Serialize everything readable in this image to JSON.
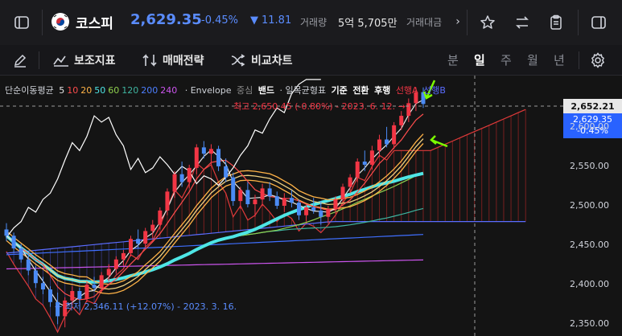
{
  "header": {
    "index_name": "코스피",
    "price": "2,629.35",
    "change_pct": "-0.45%",
    "change_abs": "11.81",
    "volume_label": "거래량",
    "volume_value": "5억 5,705만",
    "amount_label": "거래대금"
  },
  "toolbar": {
    "indicators_label": "보조지표",
    "strategy_label": "매매전략",
    "compare_label": "비교차트",
    "periods": [
      "분",
      "일",
      "주",
      "월",
      "년"
    ],
    "selected_period": "일"
  },
  "legend": {
    "ma_label": "단순이동평균",
    "ma_periods": [
      "5",
      "10",
      "20",
      "50",
      "60",
      "120",
      "200",
      "240"
    ],
    "ma_colors": [
      "#e6e6e6",
      "#ff4d4d",
      "#ffb347",
      "#4ee6e6",
      "#8fd14f",
      "#3fb5a0",
      "#4d7fff",
      "#cc55ee"
    ],
    "envelope_label": "· Envelope",
    "center_label": "중심",
    "band_label": "밴드",
    "ichimoku_label": "· 일목균형표",
    "base_label": "기준",
    "conversion_label": "전환",
    "lagging_label": "후행",
    "span_a_label": "선행A",
    "span_b_label": "선행B"
  },
  "annotations": {
    "high": "최고 2,650.45 (-0.80%) - 2023. 6. 12.",
    "low": "최저 2,346.11 (+12.07%) - 2023. 3. 16."
  },
  "price_axis": {
    "ticks": [
      "2,600.00",
      "2,550.00",
      "2,500.00",
      "2,450.00",
      "2,400.00",
      "2,350.00"
    ],
    "crosshair_value": "2,652.21",
    "current_price": "2,629.35",
    "current_change": "-0.45%"
  },
  "colors": {
    "up": "#f23645",
    "down": "#4b8bf5",
    "accent": "#2962ff",
    "arrow": "#7cfc00"
  },
  "chart_data": {
    "type": "candlestick",
    "title": "",
    "ylim": [
      2335,
      2665
    ],
    "ohlc": [
      [
        2470,
        2478,
        2455,
        2462
      ],
      [
        2462,
        2466,
        2440,
        2446
      ],
      [
        2446,
        2452,
        2428,
        2432
      ],
      [
        2432,
        2440,
        2412,
        2418
      ],
      [
        2418,
        2424,
        2396,
        2402
      ],
      [
        2402,
        2410,
        2388,
        2394
      ],
      [
        2394,
        2398,
        2372,
        2378
      ],
      [
        2378,
        2390,
        2350,
        2360
      ],
      [
        2360,
        2384,
        2346,
        2380
      ],
      [
        2380,
        2398,
        2374,
        2392
      ],
      [
        2392,
        2396,
        2376,
        2382
      ],
      [
        2382,
        2404,
        2378,
        2400
      ],
      [
        2400,
        2410,
        2392,
        2396
      ],
      [
        2396,
        2416,
        2390,
        2412
      ],
      [
        2412,
        2426,
        2404,
        2420
      ],
      [
        2420,
        2436,
        2414,
        2432
      ],
      [
        2432,
        2444,
        2424,
        2440
      ],
      [
        2440,
        2462,
        2436,
        2458
      ],
      [
        2458,
        2470,
        2446,
        2452
      ],
      [
        2452,
        2472,
        2448,
        2468
      ],
      [
        2468,
        2482,
        2458,
        2476
      ],
      [
        2476,
        2498,
        2470,
        2494
      ],
      [
        2494,
        2522,
        2488,
        2518
      ],
      [
        2518,
        2544,
        2510,
        2540
      ],
      [
        2540,
        2556,
        2524,
        2530
      ],
      [
        2530,
        2552,
        2522,
        2548
      ],
      [
        2548,
        2578,
        2540,
        2574
      ],
      [
        2574,
        2582,
        2560,
        2566
      ],
      [
        2566,
        2578,
        2552,
        2572
      ],
      [
        2572,
        2576,
        2544,
        2550
      ],
      [
        2550,
        2560,
        2530,
        2536
      ],
      [
        2536,
        2542,
        2500,
        2506
      ],
      [
        2506,
        2524,
        2496,
        2520
      ],
      [
        2520,
        2530,
        2498,
        2502
      ],
      [
        2502,
        2514,
        2486,
        2508
      ],
      [
        2508,
        2528,
        2500,
        2522
      ],
      [
        2522,
        2530,
        2506,
        2512
      ],
      [
        2512,
        2518,
        2496,
        2500
      ],
      [
        2500,
        2516,
        2492,
        2510
      ],
      [
        2510,
        2520,
        2498,
        2504
      ],
      [
        2504,
        2508,
        2482,
        2488
      ],
      [
        2488,
        2502,
        2480,
        2498
      ],
      [
        2498,
        2510,
        2490,
        2494
      ],
      [
        2494,
        2506,
        2476,
        2486
      ],
      [
        2486,
        2500,
        2478,
        2496
      ],
      [
        2496,
        2512,
        2490,
        2508
      ],
      [
        2508,
        2528,
        2504,
        2524
      ],
      [
        2524,
        2540,
        2516,
        2536
      ],
      [
        2536,
        2560,
        2530,
        2556
      ],
      [
        2556,
        2570,
        2544,
        2552
      ],
      [
        2552,
        2576,
        2546,
        2570
      ],
      [
        2570,
        2590,
        2562,
        2584
      ],
      [
        2584,
        2600,
        2574,
        2578
      ],
      [
        2578,
        2606,
        2572,
        2602
      ],
      [
        2602,
        2620,
        2596,
        2614
      ],
      [
        2614,
        2636,
        2606,
        2630
      ],
      [
        2630,
        2650,
        2620,
        2644
      ],
      [
        2644,
        2650,
        2624,
        2629
      ]
    ],
    "annotations": [
      "최고 2,650.45 (-0.80%) - 2023. 6. 12.",
      "최저 2,346.11 (+12.07%) - 2023. 3. 16."
    ]
  }
}
